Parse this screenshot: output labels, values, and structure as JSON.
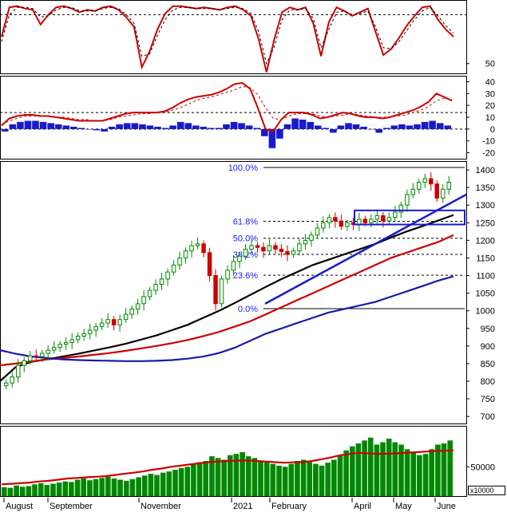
{
  "chart_data": [
    {
      "type": "line",
      "panel": "oscillator",
      "ylim": [
        42,
        102
      ],
      "yticks": [
        50
      ],
      "reference_lines": [
        90,
        10
      ],
      "series": [
        {
          "values": [
            72,
            96,
            97,
            95,
            94,
            82,
            90,
            96,
            97,
            95,
            92,
            94,
            93,
            96,
            97,
            94,
            88,
            80,
            47,
            60,
            78,
            91,
            97,
            97,
            96,
            95,
            96,
            95,
            94,
            96,
            97,
            94,
            89,
            70,
            43,
            70,
            92,
            96,
            94,
            96,
            83,
            56,
            84,
            96,
            93,
            89,
            92,
            95,
            76,
            57,
            62,
            71,
            81,
            89,
            96,
            97,
            86,
            78,
            72
          ],
          "color": "#cc0000"
        },
        {
          "values": [
            68,
            90,
            96,
            96,
            95,
            88,
            89,
            94,
            96,
            96,
            93,
            93,
            93,
            95,
            96,
            95,
            90,
            83,
            56,
            58,
            73,
            86,
            94,
            96,
            96,
            95,
            95,
            95,
            94,
            95,
            96,
            95,
            91,
            76,
            50,
            64,
            86,
            94,
            94,
            95,
            87,
            63,
            78,
            92,
            93,
            90,
            91,
            93,
            80,
            63,
            62,
            68,
            77,
            86,
            93,
            96,
            89,
            81,
            75
          ],
          "color": "#000000",
          "dashed": true
        }
      ]
    },
    {
      "type": "bar",
      "panel": "macd",
      "ylim": [
        -25,
        45
      ],
      "yticks": [
        40,
        30,
        20,
        10,
        0,
        -10,
        -20
      ],
      "series": [
        {
          "name_hidden": true,
          "values": [
            -2,
            4,
            6,
            7,
            7,
            6,
            5,
            4,
            3,
            2,
            1,
            0,
            -1,
            -2,
            2,
            4,
            5,
            5,
            4,
            3,
            2,
            1,
            3,
            6,
            5,
            3,
            2,
            1,
            1,
            4,
            6,
            5,
            3,
            1,
            -6,
            -16,
            -8,
            4,
            9,
            8,
            6,
            3,
            1,
            -3,
            3,
            5,
            4,
            2,
            0,
            -3,
            1,
            3,
            4,
            3,
            4,
            6,
            7,
            5,
            3
          ],
          "color": "#1a1acc"
        }
      ],
      "lines": [
        {
          "values": [
            3,
            9,
            11,
            12,
            12,
            11,
            11,
            10,
            9,
            8,
            7,
            7,
            7,
            7,
            9,
            11,
            13,
            14,
            14,
            14,
            14,
            15,
            18,
            22,
            25,
            27,
            28,
            29,
            31,
            34,
            38,
            39,
            34,
            18,
            0,
            -2,
            8,
            14,
            14,
            14,
            12,
            9,
            10,
            12,
            14,
            13,
            11,
            10,
            10,
            9,
            10,
            12,
            14,
            16,
            19,
            23,
            30,
            27,
            24
          ],
          "color": "#cc0000"
        },
        {
          "values": [
            4,
            7,
            9,
            11,
            11,
            11,
            11,
            10,
            10,
            9,
            8,
            8,
            7,
            7,
            8,
            10,
            11,
            12,
            13,
            13,
            14,
            14,
            16,
            18,
            21,
            24,
            26,
            27,
            29,
            31,
            33,
            36,
            35,
            29,
            18,
            9,
            8,
            11,
            13,
            13,
            13,
            11,
            10,
            11,
            12,
            13,
            12,
            11,
            10,
            10,
            10,
            11,
            12,
            14,
            16,
            19,
            24,
            26,
            25
          ],
          "color": "#cc0000",
          "dashed": true
        }
      ]
    },
    {
      "type": "candlestick",
      "panel": "price",
      "ylim": [
        680,
        1425
      ],
      "yticks": [
        700,
        750,
        800,
        850,
        900,
        950,
        1000,
        1050,
        1100,
        1150,
        1200,
        1250,
        1300,
        1350,
        1400
      ],
      "close": [
        795,
        812,
        845,
        858,
        872,
        870,
        879,
        888,
        896,
        905,
        910,
        918,
        928,
        935,
        945,
        955,
        965,
        975,
        960,
        975,
        990,
        1005,
        1020,
        1040,
        1058,
        1075,
        1090,
        1110,
        1130,
        1150,
        1170,
        1185,
        1190,
        1165,
        1100,
        1020,
        1090,
        1115,
        1140,
        1155,
        1175,
        1185,
        1180,
        1170,
        1185,
        1175,
        1168,
        1160,
        1170,
        1190,
        1200,
        1215,
        1235,
        1250,
        1265,
        1255,
        1240,
        1250,
        1245,
        1260,
        1250,
        1260,
        1270,
        1255,
        1265,
        1280,
        1300,
        1330,
        1345,
        1365,
        1375,
        1360,
        1320,
        1345,
        1365
      ],
      "fibonacci": [
        {
          "label": "100.0%",
          "value": 1407
        },
        {
          "label": "61.8%",
          "value": 1254
        },
        {
          "label": "50.0%",
          "value": 1206
        },
        {
          "label": "38.2%",
          "value": 1160
        },
        {
          "label": "23.6%",
          "value": 1101
        },
        {
          "label": "0.0%",
          "value": 1006
        }
      ],
      "lines": [
        {
          "values": [
            800,
            840,
            855,
            862,
            870,
            878,
            887,
            896,
            906,
            918,
            930,
            945,
            960,
            980,
            1000,
            1022,
            1045,
            1068,
            1090,
            1110,
            1130,
            1145,
            1160,
            1175,
            1190,
            1208,
            1225,
            1240,
            1256,
            1272
          ],
          "color": "#000000"
        },
        {
          "values": [
            845,
            850,
            856,
            862,
            866,
            870,
            875,
            880,
            886,
            893,
            900,
            908,
            917,
            928,
            940,
            955,
            970,
            990,
            1010,
            1030,
            1050,
            1070,
            1090,
            1110,
            1130,
            1150,
            1165,
            1180,
            1195,
            1215
          ],
          "color": "#cc0000"
        },
        {
          "values": [
            888,
            878,
            870,
            866,
            862,
            860,
            859,
            858,
            857,
            857,
            858,
            860,
            864,
            870,
            880,
            895,
            915,
            935,
            950,
            965,
            980,
            995,
            1005,
            1015,
            1025,
            1040,
            1055,
            1070,
            1085,
            1098
          ],
          "color": "#1a1aaa"
        }
      ]
    },
    {
      "type": "bar",
      "panel": "volume",
      "ylim": [
        0,
        120000
      ],
      "yticks": [
        50000
      ],
      "unit_label": "x10000",
      "values": [
        15000,
        14000,
        18000,
        16000,
        17000,
        20000,
        22000,
        19000,
        21000,
        23000,
        25000,
        24000,
        28000,
        30000,
        27000,
        29000,
        31000,
        33000,
        30000,
        28000,
        26000,
        29000,
        32000,
        35000,
        38000,
        36000,
        40000,
        42000,
        45000,
        48000,
        50000,
        55000,
        58000,
        60000,
        68000,
        65000,
        62000,
        70000,
        72000,
        75000,
        68000,
        65000,
        60000,
        58000,
        55000,
        52000,
        50000,
        55000,
        60000,
        62000,
        58000,
        55000,
        52000,
        57000,
        62000,
        70000,
        78000,
        85000,
        90000,
        95000,
        100000,
        88000,
        92000,
        98000,
        92000,
        88000,
        80000,
        75000,
        70000,
        72000,
        80000,
        88000,
        90000,
        95000
      ],
      "ma": [
        20000,
        21000,
        22000,
        23000,
        25000,
        26000,
        28000,
        30000,
        31000,
        32000,
        33000,
        34000,
        36000,
        38000,
        40000,
        42000,
        45000,
        47000,
        50000,
        52000,
        54000,
        56000,
        58000,
        59000,
        60000,
        60500,
        61000,
        60000,
        59000,
        58000,
        57000,
        57500,
        58000,
        60000,
        63000,
        66000,
        70000,
        72000,
        74000,
        73000,
        72000,
        72500,
        73000,
        74000,
        75000,
        76000,
        77000,
        77500,
        78000
      ],
      "colors": {
        "bars": "#008800",
        "ma": "#cc0000"
      }
    }
  ],
  "x_labels": [
    "August",
    "September",
    "November",
    "2021",
    "February",
    "April",
    "May",
    "June"
  ],
  "colors": {
    "fib": "#1a1aff",
    "frame": "#000000",
    "channel": "#1a1acc"
  }
}
